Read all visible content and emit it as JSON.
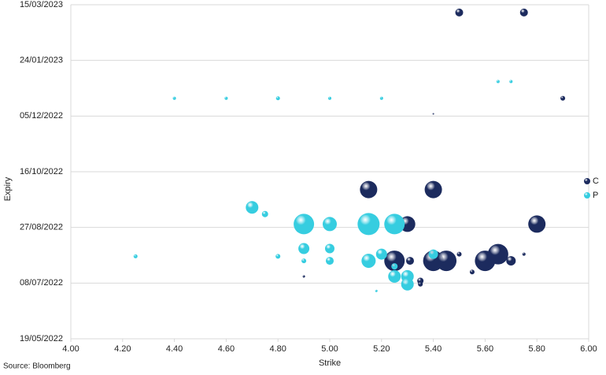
{
  "chart_data": {
    "type": "bubble",
    "x_label": "Strike",
    "y_label": "Expiry",
    "source": "Source: Bloomberg",
    "xlim": [
      4,
      6
    ],
    "xticks": [
      {
        "value": 4,
        "label": "4.00"
      },
      {
        "value": 4.2,
        "label": "4.20"
      },
      {
        "value": 4.4,
        "label": "4.40"
      },
      {
        "value": 4.6,
        "label": "4.60"
      },
      {
        "value": 4.8,
        "label": "4.80"
      },
      {
        "value": 5,
        "label": "5.00"
      },
      {
        "value": 5.2,
        "label": "5.20"
      },
      {
        "value": 5.4,
        "label": "5.40"
      },
      {
        "value": 5.6,
        "label": "5.60"
      },
      {
        "value": 5.8,
        "label": "5.80"
      },
      {
        "value": 6,
        "label": "6.00"
      }
    ],
    "ylim": [
      "19/05/2022",
      "15/03/2023"
    ],
    "yticks": [
      "19/05/2022",
      "08/07/2022",
      "27/08/2022",
      "16/10/2022",
      "05/12/2022",
      "24/01/2023",
      "15/03/2023"
    ],
    "grid": true,
    "legend": "right",
    "series": [
      {
        "name": "C",
        "color": "#1c2b5e",
        "x": [
          5.5,
          5.75,
          5.9,
          5.4,
          5.15,
          5.4,
          5.8,
          5.3,
          5.25,
          5.31,
          5.4,
          5.45,
          5.6,
          5.65,
          5.7,
          5.75,
          5.5,
          5.35,
          5.55,
          4.9,
          5.35
        ],
        "y": [
          "08/03/2023",
          "08/03/2023",
          "21/12/2022",
          "07/12/2022",
          "30/09/2022",
          "30/09/2022",
          "30/08/2022",
          "30/08/2022",
          "28/07/2022",
          "28/07/2022",
          "28/07/2022",
          "28/07/2022",
          "28/07/2022",
          "03/08/2022",
          "28/07/2022",
          "03/08/2022",
          "03/08/2022",
          "10/07/2022",
          "18/07/2022",
          "14/07/2022",
          "07/07/2022"
        ],
        "sizes": [
          5,
          5,
          3,
          1,
          11,
          11,
          11,
          10,
          13,
          5,
          13,
          13,
          13,
          13,
          6,
          2,
          3,
          4,
          3,
          1.5,
          3
        ]
      },
      {
        "name": "P",
        "color": "#36cde0",
        "x": [
          4.4,
          4.6,
          4.8,
          5.0,
          5.2,
          5.65,
          5.7,
          4.7,
          4.75,
          4.9,
          5.0,
          5.15,
          5.25,
          4.9,
          5.0,
          5.0,
          4.9,
          4.8,
          4.25,
          5.15,
          5.2,
          5.25,
          5.25,
          5.3,
          5.3,
          5.4,
          5.18
        ],
        "y": [
          "21/12/2022",
          "21/12/2022",
          "21/12/2022",
          "21/12/2022",
          "21/12/2022",
          "05/01/2023",
          "05/01/2023",
          "14/09/2022",
          "08/09/2022",
          "30/08/2022",
          "30/08/2022",
          "30/08/2022",
          "30/08/2022",
          "08/08/2022",
          "08/08/2022",
          "28/07/2022",
          "28/07/2022",
          "01/08/2022",
          "01/08/2022",
          "28/07/2022",
          "03/08/2022",
          "23/07/2022",
          "14/07/2022",
          "14/07/2022",
          "07/07/2022",
          "03/08/2022",
          "01/07/2022"
        ],
        "sizes": [
          2,
          2,
          2.5,
          2,
          2,
          2,
          2,
          8,
          4,
          13,
          9,
          14,
          13,
          7,
          6,
          5,
          3,
          3,
          2.5,
          9,
          7,
          4,
          8,
          8,
          8,
          6,
          1.5
        ]
      }
    ]
  }
}
